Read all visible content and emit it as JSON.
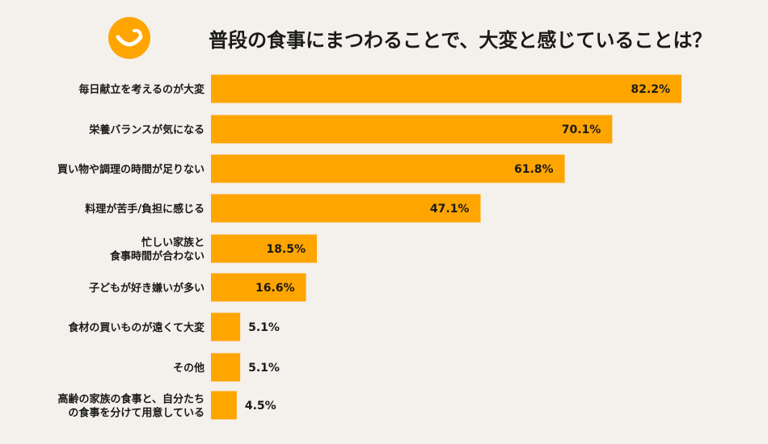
{
  "title": "普段の食事にまつわることで、大変と感じていることは？",
  "colors": {
    "bar": "#ffa500",
    "background": "#f4f0ec",
    "logo": "#ffa500"
  },
  "logo": {
    "icon": "smile-icon"
  },
  "chart_data": {
    "type": "bar",
    "orientation": "horizontal",
    "title": "普段の食事にまつわることで、大変と感じていることは？",
    "unit": "%",
    "categories": [
      [
        "毎日献立を考えるのが大変"
      ],
      [
        "栄養バランスが気になる"
      ],
      [
        "買い物や調理の時間が足りない"
      ],
      [
        "料理が苦手/負担に感じる"
      ],
      [
        "忙しい家族と",
        "食事時間が合わない"
      ],
      [
        "子どもが好き嫌いが多い"
      ],
      [
        "食材の買いものが遠くて大変"
      ],
      [
        "その他"
      ],
      [
        "高齢の家族の食事と、自分たち",
        "の食事を分けて用意している"
      ]
    ],
    "values": [
      82.2,
      70.1,
      61.8,
      47.1,
      18.5,
      16.6,
      5.1,
      5.1,
      4.5
    ],
    "value_labels": [
      "82.2%",
      "70.1%",
      "61.8%",
      "47.1%",
      "18.5%",
      "16.6%",
      "5.1%",
      "5.1%",
      "4.5%"
    ],
    "xlim": [
      0,
      100
    ],
    "grid": false,
    "legend": "none"
  }
}
